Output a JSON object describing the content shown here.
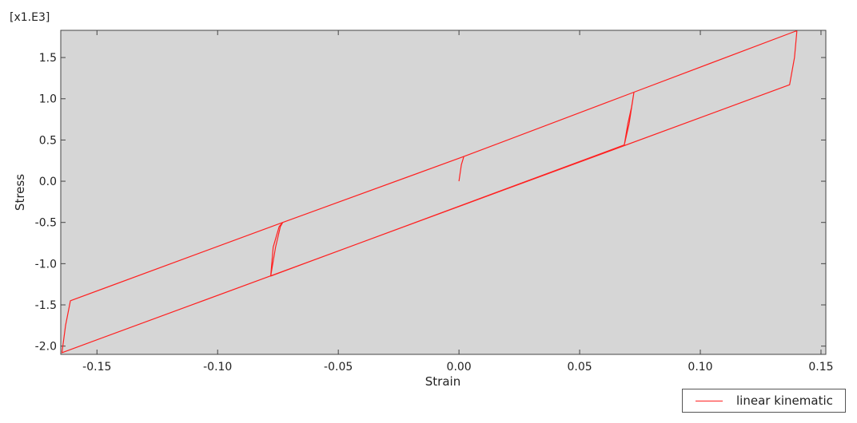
{
  "chart_data": {
    "type": "line",
    "xlabel": "Strain",
    "ylabel": "Stress",
    "y_scale_label": "[x1.E3]",
    "xlim": [
      -0.165,
      0.152
    ],
    "ylim": [
      -2.1,
      1.83
    ],
    "x_ticks": [
      -0.15,
      -0.1,
      -0.05,
      0.0,
      0.05,
      0.1,
      0.15
    ],
    "x_tick_labels": [
      "-0.15",
      "-0.10",
      "-0.05",
      "0.00",
      "0.05",
      "0.10",
      "0.15"
    ],
    "y_ticks": [
      -2.0,
      -1.5,
      -1.0,
      -0.5,
      0.0,
      0.5,
      1.0,
      1.5
    ],
    "y_tick_labels": [
      "-2.0",
      "-1.5",
      "-1.0",
      "-0.5",
      "0.0",
      "0.5",
      "1.0",
      "1.5"
    ],
    "grid": false,
    "background": "#d6d6d6",
    "legend_position": "bottom-right",
    "series": [
      {
        "name": "linear kinematic",
        "color": "#ff2020",
        "x": [
          0.0,
          0.001,
          0.002,
          0.0725,
          0.0715,
          0.07,
          0.0685,
          -0.078,
          -0.076,
          -0.074,
          -0.073,
          -0.161,
          -0.163,
          -0.1645,
          0.137,
          0.139,
          0.14,
          0.1395,
          0.0725,
          0.0705,
          0.0685,
          -0.078,
          -0.077,
          -0.0745,
          -0.073,
          0.002,
          0.001,
          0.0
        ],
        "y": [
          0.0,
          0.2,
          0.3,
          1.08,
          0.9,
          0.7,
          0.44,
          -1.15,
          -0.8,
          -0.55,
          -0.5,
          -1.45,
          -1.75,
          -2.08,
          1.17,
          1.5,
          1.82,
          1.82,
          1.08,
          0.7,
          0.44,
          -1.15,
          -0.8,
          -0.55,
          -0.5,
          0.3,
          0.2,
          0.0
        ]
      }
    ]
  }
}
